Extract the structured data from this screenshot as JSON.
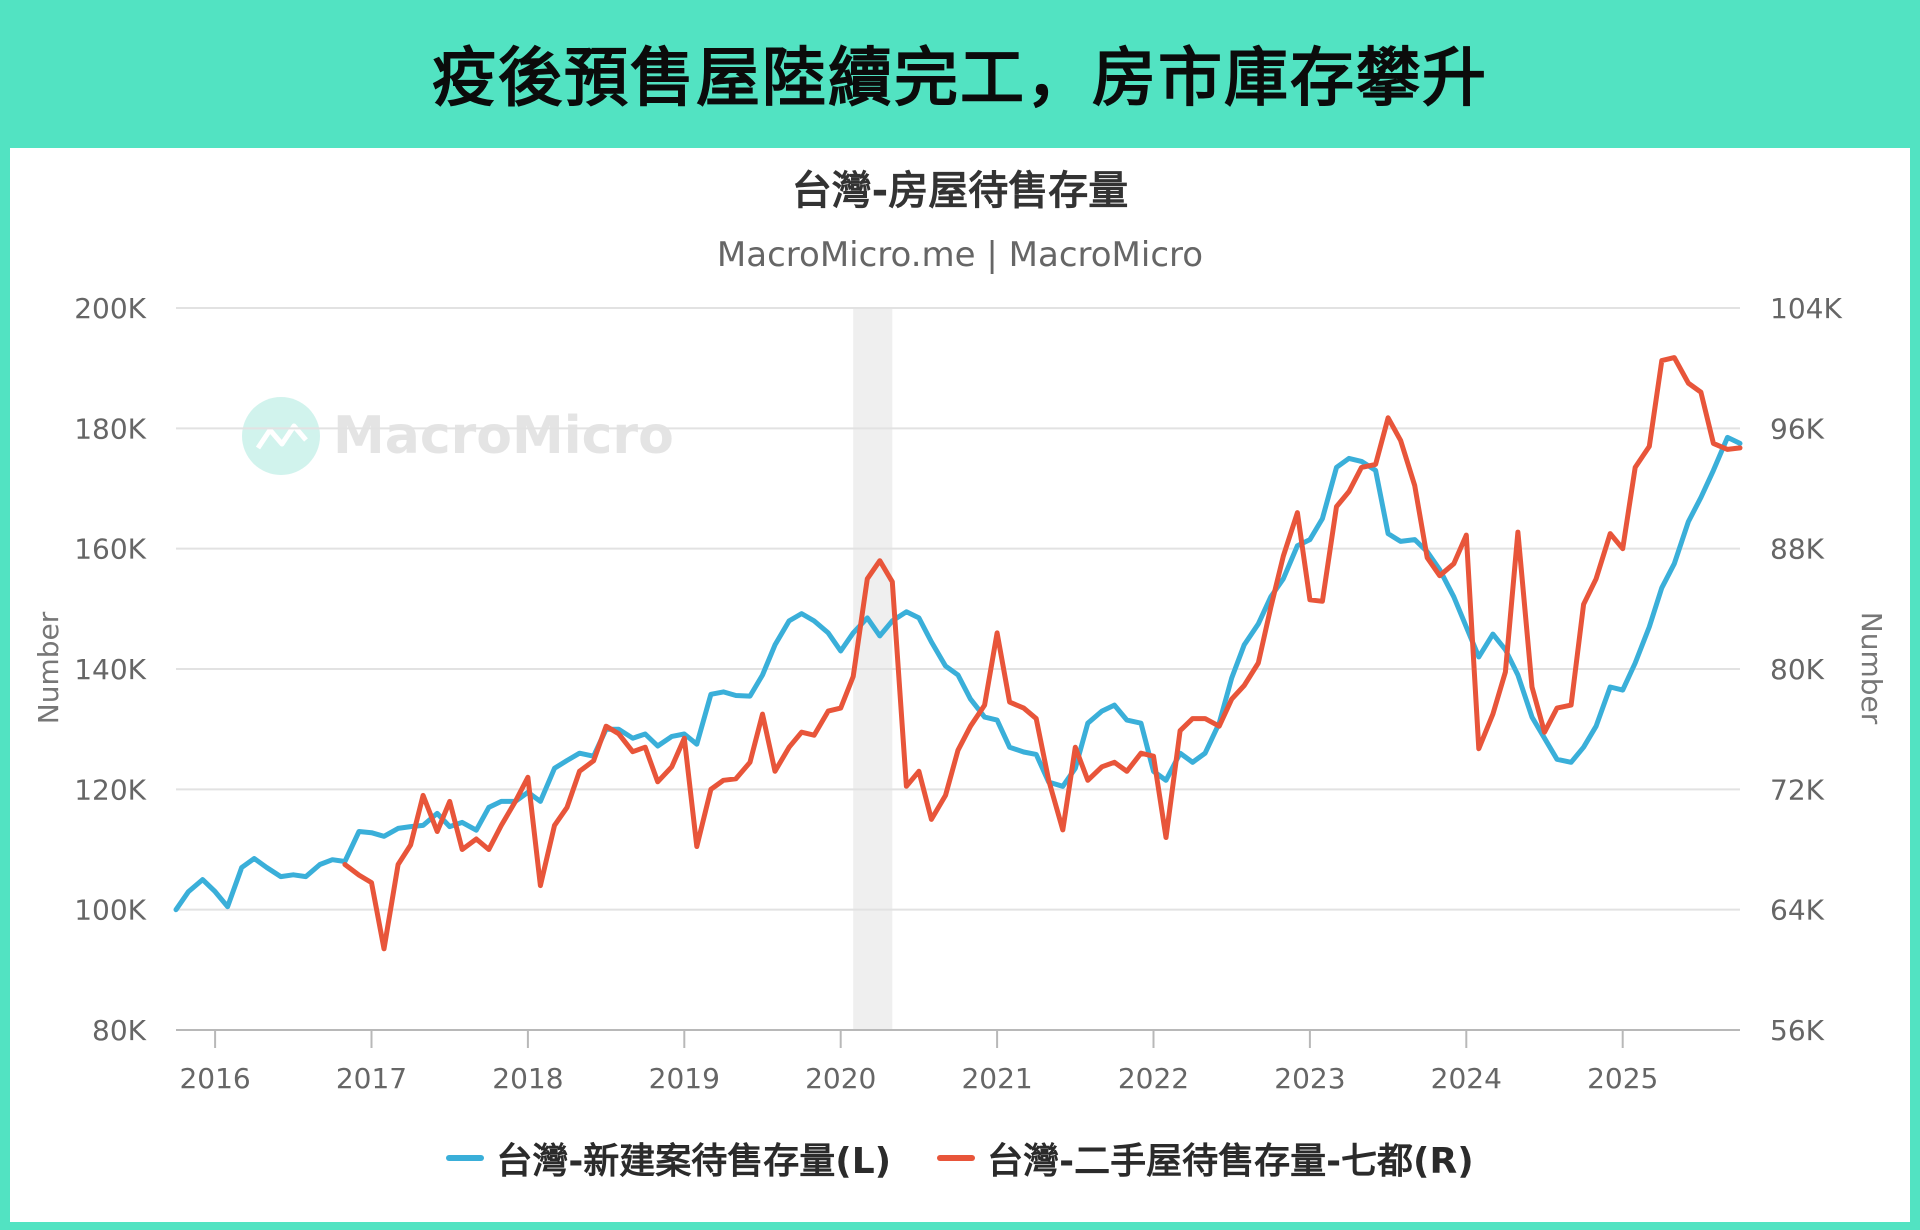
{
  "header": {
    "title": "疫後預售屋陸續完工，房市庫存攀升"
  },
  "chart_data": {
    "type": "line",
    "title": "台灣-房屋待售存量",
    "subtitle": "MacroMicro.me | MacroMicro",
    "watermark": "MacroMicro",
    "y_left": {
      "label": "Number",
      "min": 80000,
      "max": 200000,
      "ticks": [
        "80K",
        "100K",
        "120K",
        "140K",
        "160K",
        "180K",
        "200K"
      ],
      "tick_values": [
        80000,
        100000,
        120000,
        140000,
        160000,
        180000,
        200000
      ]
    },
    "y_right": {
      "label": "Number",
      "min": 56000,
      "max": 104000,
      "ticks": [
        "56K",
        "64K",
        "72K",
        "80K",
        "88K",
        "96K",
        "104K"
      ],
      "tick_values": [
        56000,
        64000,
        72000,
        80000,
        88000,
        96000,
        104000
      ]
    },
    "x_range": [
      2015.75,
      2025.75
    ],
    "x_ticks": [
      "2016",
      "2017",
      "2018",
      "2019",
      "2020",
      "2021",
      "2022",
      "2023",
      "2024",
      "2025"
    ],
    "x_tick_values": [
      2016,
      2017,
      2018,
      2019,
      2020,
      2021,
      2022,
      2023,
      2024,
      2025
    ],
    "shaded_period": [
      2020.08,
      2020.33
    ],
    "grid": true,
    "legend_position": "bottom",
    "series": [
      {
        "name": "台灣-新建案待售存量(L)",
        "axis": "left",
        "color": "#3aafd9",
        "points": [
          [
            2015.75,
            100000
          ],
          [
            2015.83,
            103000
          ],
          [
            2015.92,
            105000
          ],
          [
            2016.0,
            103000
          ],
          [
            2016.08,
            100500
          ],
          [
            2016.17,
            107000
          ],
          [
            2016.25,
            108500
          ],
          [
            2016.33,
            107000
          ],
          [
            2016.42,
            105500
          ],
          [
            2016.5,
            105800
          ],
          [
            2016.58,
            105500
          ],
          [
            2016.67,
            107500
          ],
          [
            2016.75,
            108300
          ],
          [
            2016.83,
            108000
          ],
          [
            2016.92,
            113000
          ],
          [
            2017.0,
            112800
          ],
          [
            2017.08,
            112200
          ],
          [
            2017.17,
            113500
          ],
          [
            2017.25,
            113800
          ],
          [
            2017.33,
            114000
          ],
          [
            2017.42,
            116000
          ],
          [
            2017.5,
            113800
          ],
          [
            2017.58,
            114500
          ],
          [
            2017.67,
            113200
          ],
          [
            2017.75,
            117000
          ],
          [
            2017.83,
            118000
          ],
          [
            2017.92,
            118000
          ],
          [
            2018.0,
            119500
          ],
          [
            2018.08,
            118000
          ],
          [
            2018.17,
            123500
          ],
          [
            2018.25,
            124800
          ],
          [
            2018.33,
            126000
          ],
          [
            2018.42,
            125500
          ],
          [
            2018.5,
            130000
          ],
          [
            2018.58,
            130000
          ],
          [
            2018.67,
            128500
          ],
          [
            2018.75,
            129200
          ],
          [
            2018.83,
            127200
          ],
          [
            2018.92,
            128800
          ],
          [
            2019.0,
            129200
          ],
          [
            2019.08,
            127500
          ],
          [
            2019.17,
            135800
          ],
          [
            2019.25,
            136200
          ],
          [
            2019.33,
            135600
          ],
          [
            2019.42,
            135500
          ],
          [
            2019.5,
            139000
          ],
          [
            2019.58,
            144000
          ],
          [
            2019.67,
            148000
          ],
          [
            2019.75,
            149200
          ],
          [
            2019.83,
            148000
          ],
          [
            2019.92,
            146000
          ],
          [
            2020.0,
            143000
          ],
          [
            2020.08,
            146000
          ],
          [
            2020.17,
            148500
          ],
          [
            2020.25,
            145500
          ],
          [
            2020.33,
            148000
          ],
          [
            2020.42,
            149500
          ],
          [
            2020.5,
            148500
          ],
          [
            2020.58,
            144500
          ],
          [
            2020.67,
            140500
          ],
          [
            2020.75,
            139000
          ],
          [
            2020.83,
            135000
          ],
          [
            2020.92,
            132000
          ],
          [
            2021.0,
            131500
          ],
          [
            2021.08,
            127000
          ],
          [
            2021.17,
            126200
          ],
          [
            2021.25,
            125800
          ],
          [
            2021.33,
            121200
          ],
          [
            2021.42,
            120500
          ],
          [
            2021.5,
            123500
          ],
          [
            2021.58,
            131000
          ],
          [
            2021.67,
            133000
          ],
          [
            2021.75,
            134000
          ],
          [
            2021.83,
            131500
          ],
          [
            2021.92,
            131000
          ],
          [
            2022.0,
            123000
          ],
          [
            2022.08,
            121500
          ],
          [
            2022.17,
            126000
          ],
          [
            2022.25,
            124500
          ],
          [
            2022.33,
            126000
          ],
          [
            2022.42,
            131000
          ],
          [
            2022.5,
            138500
          ],
          [
            2022.58,
            144000
          ],
          [
            2022.67,
            147500
          ],
          [
            2022.75,
            152000
          ],
          [
            2022.83,
            155000
          ],
          [
            2022.92,
            160500
          ],
          [
            2023.0,
            161500
          ],
          [
            2023.08,
            165000
          ],
          [
            2023.17,
            173500
          ],
          [
            2023.25,
            175000
          ],
          [
            2023.33,
            174500
          ],
          [
            2023.42,
            173000
          ],
          [
            2023.5,
            162500
          ],
          [
            2023.58,
            161200
          ],
          [
            2023.67,
            161500
          ],
          [
            2023.75,
            159500
          ],
          [
            2023.83,
            156500
          ],
          [
            2023.92,
            152000
          ],
          [
            2024.0,
            147000
          ],
          [
            2024.08,
            142000
          ],
          [
            2024.17,
            145800
          ],
          [
            2024.25,
            143200
          ],
          [
            2024.33,
            139000
          ],
          [
            2024.42,
            132000
          ],
          [
            2024.5,
            128500
          ],
          [
            2024.58,
            125000
          ],
          [
            2024.67,
            124500
          ],
          [
            2024.75,
            127000
          ],
          [
            2024.83,
            130500
          ],
          [
            2024.92,
            137000
          ],
          [
            2025.0,
            136500
          ],
          [
            2025.08,
            141000
          ],
          [
            2025.17,
            147000
          ],
          [
            2025.25,
            153500
          ],
          [
            2025.33,
            157500
          ],
          [
            2025.42,
            164500
          ],
          [
            2025.5,
            168500
          ],
          [
            2025.58,
            173000
          ],
          [
            2025.67,
            178500
          ],
          [
            2025.75,
            177500
          ]
        ]
      },
      {
        "name": "台灣-二手屋待售存量-七都(R)",
        "axis": "right",
        "color": "#e8553a",
        "points": [
          [
            2016.83,
            67000
          ],
          [
            2016.92,
            66300
          ],
          [
            2017.0,
            65800
          ],
          [
            2017.08,
            61400
          ],
          [
            2017.17,
            67000
          ],
          [
            2017.25,
            68300
          ],
          [
            2017.33,
            71600
          ],
          [
            2017.42,
            69200
          ],
          [
            2017.5,
            71200
          ],
          [
            2017.58,
            68000
          ],
          [
            2017.67,
            68700
          ],
          [
            2017.75,
            68000
          ],
          [
            2017.83,
            69600
          ],
          [
            2017.92,
            71200
          ],
          [
            2018.0,
            72800
          ],
          [
            2018.08,
            65600
          ],
          [
            2018.17,
            69600
          ],
          [
            2018.25,
            70800
          ],
          [
            2018.33,
            73200
          ],
          [
            2018.42,
            73900
          ],
          [
            2018.5,
            76200
          ],
          [
            2018.58,
            75700
          ],
          [
            2018.67,
            74500
          ],
          [
            2018.75,
            74800
          ],
          [
            2018.83,
            72500
          ],
          [
            2018.92,
            73500
          ],
          [
            2019.0,
            75400
          ],
          [
            2019.08,
            68200
          ],
          [
            2019.17,
            72000
          ],
          [
            2019.25,
            72600
          ],
          [
            2019.33,
            72700
          ],
          [
            2019.42,
            73800
          ],
          [
            2019.5,
            77000
          ],
          [
            2019.58,
            73200
          ],
          [
            2019.67,
            74800
          ],
          [
            2019.75,
            75800
          ],
          [
            2019.83,
            75600
          ],
          [
            2019.92,
            77200
          ],
          [
            2020.0,
            77400
          ],
          [
            2020.08,
            79500
          ],
          [
            2020.17,
            86000
          ],
          [
            2020.25,
            87200
          ],
          [
            2020.33,
            85800
          ],
          [
            2020.42,
            72200
          ],
          [
            2020.5,
            73200
          ],
          [
            2020.58,
            70000
          ],
          [
            2020.67,
            71600
          ],
          [
            2020.75,
            74600
          ],
          [
            2020.83,
            76200
          ],
          [
            2020.92,
            77600
          ],
          [
            2021.0,
            82400
          ],
          [
            2021.08,
            77800
          ],
          [
            2021.17,
            77400
          ],
          [
            2021.25,
            76700
          ],
          [
            2021.33,
            72600
          ],
          [
            2021.42,
            69300
          ],
          [
            2021.5,
            74800
          ],
          [
            2021.58,
            72600
          ],
          [
            2021.67,
            73500
          ],
          [
            2021.75,
            73800
          ],
          [
            2021.83,
            73200
          ],
          [
            2021.92,
            74400
          ],
          [
            2022.0,
            74200
          ],
          [
            2022.08,
            68800
          ],
          [
            2022.17,
            75900
          ],
          [
            2022.25,
            76700
          ],
          [
            2022.33,
            76700
          ],
          [
            2022.42,
            76200
          ],
          [
            2022.5,
            78000
          ],
          [
            2022.58,
            78900
          ],
          [
            2022.67,
            80400
          ],
          [
            2022.75,
            84100
          ],
          [
            2022.83,
            87500
          ],
          [
            2022.92,
            90400
          ],
          [
            2023.0,
            84600
          ],
          [
            2023.08,
            84500
          ],
          [
            2023.17,
            90800
          ],
          [
            2023.25,
            91800
          ],
          [
            2023.33,
            93400
          ],
          [
            2023.42,
            93600
          ],
          [
            2023.5,
            96700
          ],
          [
            2023.58,
            95200
          ],
          [
            2023.67,
            92200
          ],
          [
            2023.75,
            87400
          ],
          [
            2023.83,
            86200
          ],
          [
            2023.92,
            87000
          ],
          [
            2024.0,
            88900
          ],
          [
            2024.08,
            74700
          ],
          [
            2024.17,
            77000
          ],
          [
            2024.25,
            79800
          ],
          [
            2024.33,
            89100
          ],
          [
            2024.42,
            78800
          ],
          [
            2024.5,
            75800
          ],
          [
            2024.58,
            77400
          ],
          [
            2024.67,
            77600
          ],
          [
            2024.75,
            84300
          ],
          [
            2024.83,
            86000
          ],
          [
            2024.92,
            89000
          ],
          [
            2025.0,
            88000
          ],
          [
            2025.08,
            93400
          ],
          [
            2025.17,
            94800
          ],
          [
            2025.25,
            100500
          ],
          [
            2025.33,
            100700
          ],
          [
            2025.42,
            99000
          ],
          [
            2025.5,
            98400
          ],
          [
            2025.58,
            95000
          ],
          [
            2025.67,
            94600
          ],
          [
            2025.75,
            94700
          ]
        ]
      }
    ]
  }
}
